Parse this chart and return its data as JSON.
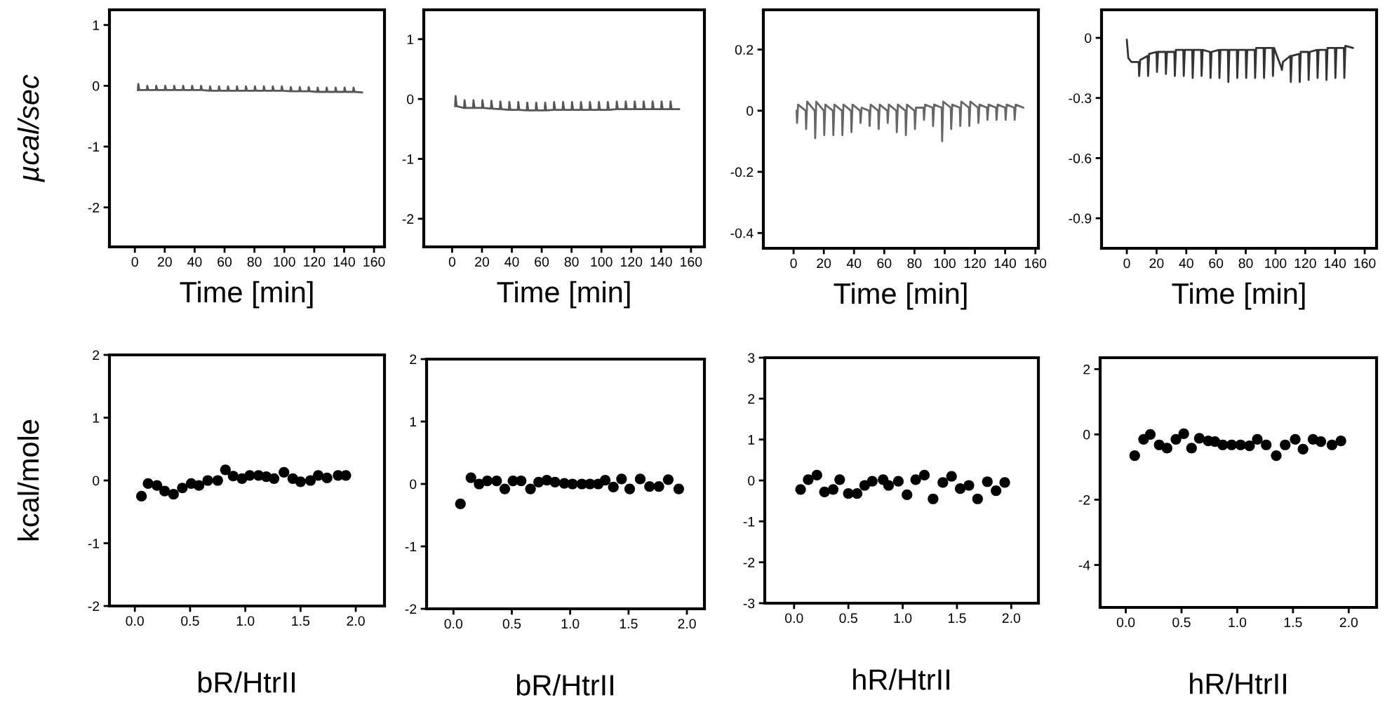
{
  "chart_data": [
    {
      "type": "line",
      "ylabel": "µcal/sec",
      "xlabel": "Time [min]",
      "xlim": [
        -17,
        167
      ],
      "ylim": [
        -2.65,
        1.25
      ],
      "xticks": [
        0,
        20,
        40,
        60,
        80,
        100,
        120,
        140,
        160
      ],
      "yticks": [
        -2,
        -1,
        0,
        1
      ],
      "line_style": "solid",
      "series": [
        {
          "color": "#555555",
          "x": [
            2,
            2.3,
            3,
            8,
            8.3,
            9,
            14,
            14.3,
            15,
            20,
            20.3,
            21,
            26,
            26.3,
            27,
            32,
            32.3,
            33,
            38,
            38.3,
            39,
            44,
            44.3,
            45,
            50,
            50.3,
            51,
            56,
            56.3,
            57,
            62,
            62.3,
            63,
            68,
            68.3,
            69,
            74,
            74.3,
            75,
            80,
            80.3,
            81,
            86,
            86.3,
            87,
            92,
            92.3,
            93,
            98,
            98.3,
            99,
            104,
            104.3,
            105,
            110,
            110.3,
            111,
            116,
            116.3,
            117,
            122,
            122.3,
            123,
            128,
            128.3,
            129,
            134,
            134.3,
            135,
            140,
            140.3,
            141,
            146,
            146.3,
            147,
            152
          ],
          "values": [
            -0.07,
            0.03,
            -0.07,
            -0.07,
            0.0,
            -0.07,
            -0.07,
            0.0,
            -0.07,
            -0.07,
            0.0,
            -0.07,
            -0.07,
            0.0,
            -0.07,
            -0.07,
            0.0,
            -0.07,
            -0.07,
            0.0,
            -0.07,
            -0.07,
            0.0,
            -0.07,
            -0.08,
            -0.01,
            -0.08,
            -0.08,
            -0.01,
            -0.08,
            -0.08,
            -0.01,
            -0.08,
            -0.08,
            -0.01,
            -0.08,
            -0.08,
            -0.01,
            -0.08,
            -0.08,
            -0.01,
            -0.08,
            -0.08,
            -0.01,
            -0.08,
            -0.08,
            -0.01,
            -0.08,
            -0.08,
            -0.01,
            -0.08,
            -0.09,
            -0.02,
            -0.09,
            -0.09,
            -0.02,
            -0.09,
            -0.09,
            -0.02,
            -0.09,
            -0.1,
            -0.03,
            -0.1,
            -0.1,
            -0.03,
            -0.1,
            -0.1,
            -0.03,
            -0.1,
            -0.1,
            -0.03,
            -0.1,
            -0.1,
            -0.03,
            -0.1,
            -0.11
          ]
        }
      ]
    },
    {
      "type": "line",
      "xlabel": "Time [min]",
      "xlim": [
        -19,
        169
      ],
      "ylim": [
        -2.47,
        1.49
      ],
      "xticks": [
        0,
        20,
        40,
        60,
        80,
        100,
        120,
        140,
        160
      ],
      "yticks": [
        -2,
        -1,
        0,
        1
      ],
      "line_style": "solid",
      "series": [
        {
          "color": "#555555",
          "x": [
            2,
            2.3,
            3,
            8,
            8.3,
            9,
            14,
            14.3,
            15,
            20,
            20.3,
            21,
            26,
            26.3,
            27,
            32,
            32.3,
            33,
            38,
            38.3,
            39,
            44,
            44.3,
            45,
            50,
            50.3,
            51,
            56,
            56.3,
            57,
            62,
            62.3,
            63,
            68,
            68.3,
            69,
            74,
            74.3,
            75,
            80,
            80.3,
            81,
            86,
            86.3,
            87,
            92,
            92.3,
            93,
            98,
            98.3,
            99,
            104,
            104.3,
            105,
            110,
            110.3,
            111,
            116,
            116.3,
            117,
            122,
            122.3,
            123,
            128,
            128.3,
            129,
            134,
            134.3,
            135,
            140,
            140.3,
            141,
            146,
            146.3,
            147,
            152
          ],
          "values": [
            -0.12,
            0.05,
            -0.12,
            -0.15,
            -0.02,
            -0.15,
            -0.15,
            -0.02,
            -0.15,
            -0.15,
            -0.02,
            -0.15,
            -0.16,
            -0.03,
            -0.16,
            -0.17,
            -0.04,
            -0.17,
            -0.18,
            -0.05,
            -0.18,
            -0.18,
            -0.05,
            -0.18,
            -0.19,
            -0.06,
            -0.19,
            -0.19,
            -0.06,
            -0.19,
            -0.19,
            -0.06,
            -0.19,
            -0.18,
            -0.05,
            -0.18,
            -0.18,
            -0.05,
            -0.18,
            -0.18,
            -0.05,
            -0.18,
            -0.18,
            -0.05,
            -0.18,
            -0.18,
            -0.05,
            -0.18,
            -0.18,
            -0.05,
            -0.18,
            -0.18,
            -0.05,
            -0.18,
            -0.17,
            -0.04,
            -0.17,
            -0.17,
            -0.04,
            -0.17,
            -0.17,
            -0.04,
            -0.17,
            -0.17,
            -0.04,
            -0.17,
            -0.17,
            -0.04,
            -0.17,
            -0.17,
            -0.04,
            -0.17,
            -0.17,
            -0.04,
            -0.17,
            -0.17
          ]
        }
      ]
    },
    {
      "type": "line",
      "xlabel": "Time [min]",
      "xlim": [
        -20,
        162
      ],
      "ylim": [
        -0.45,
        0.33
      ],
      "xticks": [
        0,
        20,
        40,
        60,
        80,
        100,
        120,
        140,
        160
      ],
      "yticks": [
        -0.4,
        -0.2,
        0,
        0.2
      ],
      "line_style": "solid",
      "series": [
        {
          "color": "#666666",
          "x": [
            2,
            2.3,
            3,
            8,
            8.3,
            9,
            14,
            14.3,
            15,
            20,
            20.3,
            21,
            26,
            26.3,
            27,
            32,
            32.3,
            33,
            38,
            38.3,
            39,
            44,
            44.3,
            45,
            50,
            50.3,
            51,
            56,
            56.3,
            57,
            62,
            62.3,
            63,
            68,
            68.3,
            69,
            74,
            74.3,
            75,
            80,
            80.3,
            81,
            86,
            86.3,
            87,
            92,
            92.3,
            93,
            98,
            98.3,
            99,
            104,
            104.3,
            105,
            110,
            110.3,
            111,
            116,
            116.3,
            117,
            122,
            122.3,
            123,
            128,
            128.3,
            129,
            134,
            134.3,
            135,
            140,
            140.3,
            141,
            146,
            146.3,
            147,
            152
          ],
          "values": [
            0.0,
            -0.04,
            0.02,
            0.0,
            -0.06,
            0.03,
            0.0,
            -0.09,
            0.03,
            0.0,
            -0.08,
            0.02,
            0.0,
            -0.08,
            0.02,
            0.0,
            -0.08,
            0.02,
            0.0,
            -0.07,
            0.02,
            0.0,
            -0.04,
            0.01,
            0.0,
            -0.05,
            0.02,
            0.0,
            -0.06,
            0.02,
            0.0,
            -0.04,
            0.02,
            0.0,
            -0.07,
            0.02,
            0.0,
            -0.08,
            0.02,
            0.0,
            -0.06,
            0.01,
            0.01,
            -0.03,
            0.02,
            0.01,
            -0.05,
            0.02,
            0.01,
            -0.1,
            0.03,
            0.01,
            -0.06,
            0.02,
            0.01,
            -0.05,
            0.03,
            0.01,
            -0.05,
            0.03,
            0.01,
            -0.04,
            0.02,
            0.01,
            -0.03,
            0.02,
            0.01,
            -0.03,
            0.02,
            0.01,
            -0.03,
            0.02,
            0.01,
            -0.03,
            0.02,
            0.01
          ]
        }
      ]
    },
    {
      "type": "line",
      "xlabel": "Time [min]",
      "xlim": [
        -17,
        168
      ],
      "ylim": [
        -1.05,
        0.14
      ],
      "xticks": [
        0,
        20,
        40,
        60,
        80,
        100,
        120,
        140,
        160
      ],
      "yticks": [
        -0.9,
        -0.6,
        -0.3,
        0
      ],
      "line_style": "solid",
      "series": [
        {
          "color": "#333333",
          "x": [
            0,
            1,
            3,
            8,
            8.3,
            9,
            14,
            14.3,
            15,
            20,
            20.3,
            21,
            26,
            26.3,
            27,
            32,
            32.3,
            33,
            38,
            38.3,
            39,
            44,
            44.3,
            45,
            50,
            50.3,
            51,
            56,
            56.3,
            57,
            62,
            62.3,
            63,
            68,
            68.3,
            69,
            74,
            74.3,
            75,
            80,
            80.3,
            81,
            86,
            86.3,
            87,
            92,
            92.3,
            93,
            98,
            98.3,
            99,
            104,
            104.3,
            105,
            110,
            110.3,
            111,
            116,
            116.3,
            117,
            122,
            122.3,
            123,
            128,
            128.3,
            129,
            134,
            134.3,
            135,
            140,
            140.3,
            141,
            146,
            146.3,
            147,
            152
          ],
          "values": [
            -0.01,
            -0.1,
            -0.12,
            -0.12,
            -0.19,
            -0.11,
            -0.09,
            -0.19,
            -0.08,
            -0.07,
            -0.17,
            -0.07,
            -0.07,
            -0.18,
            -0.07,
            -0.07,
            -0.19,
            -0.06,
            -0.06,
            -0.19,
            -0.06,
            -0.06,
            -0.2,
            -0.06,
            -0.06,
            -0.19,
            -0.06,
            -0.07,
            -0.2,
            -0.07,
            -0.06,
            -0.2,
            -0.06,
            -0.06,
            -0.22,
            -0.06,
            -0.06,
            -0.2,
            -0.06,
            -0.06,
            -0.2,
            -0.06,
            -0.06,
            -0.2,
            -0.05,
            -0.05,
            -0.2,
            -0.05,
            -0.05,
            -0.19,
            -0.05,
            -0.15,
            -0.16,
            -0.12,
            -0.09,
            -0.22,
            -0.09,
            -0.08,
            -0.22,
            -0.07,
            -0.07,
            -0.21,
            -0.07,
            -0.06,
            -0.2,
            -0.06,
            -0.06,
            -0.21,
            -0.05,
            -0.05,
            -0.2,
            -0.05,
            -0.05,
            -0.2,
            -0.04,
            -0.05
          ]
        }
      ]
    },
    {
      "type": "scatter",
      "ylabel": "kcal/mole",
      "xlabel": "bR/HtrII",
      "xlim": [
        -0.23,
        2.26
      ],
      "ylim": [
        -2,
        2
      ],
      "xticks": [
        {
          "value": 0,
          "label": "0.0"
        },
        0.5,
        {
          "value": 1,
          "label": "1.0"
        },
        1.5,
        {
          "value": 2,
          "label": "2.0"
        }
      ],
      "yticks": [
        -2,
        -1,
        0,
        1,
        2
      ],
      "marker": "circle",
      "series": [
        {
          "color": "#000000",
          "x": [
            0.06,
            0.12,
            0.2,
            0.27,
            0.35,
            0.43,
            0.51,
            0.58,
            0.66,
            0.75,
            0.82,
            0.89,
            0.97,
            1.04,
            1.12,
            1.19,
            1.26,
            1.35,
            1.43,
            1.5,
            1.59,
            1.66,
            1.74,
            1.84,
            1.91
          ],
          "values": [
            -0.25,
            -0.05,
            -0.08,
            -0.17,
            -0.22,
            -0.12,
            -0.05,
            -0.08,
            0.0,
            0.0,
            0.17,
            0.07,
            0.03,
            0.08,
            0.08,
            0.06,
            0.03,
            0.13,
            0.03,
            -0.02,
            0.0,
            0.08,
            0.04,
            0.08,
            0.08
          ]
        }
      ]
    },
    {
      "type": "scatter",
      "xlabel": "bR/HtrII",
      "xlim": [
        -0.23,
        2.15
      ],
      "ylim": [
        -2,
        2
      ],
      "xticks": [
        {
          "value": 0,
          "label": "0.0"
        },
        0.5,
        {
          "value": 1,
          "label": "1.0"
        },
        1.5,
        {
          "value": 2,
          "label": "2.0"
        }
      ],
      "yticks": [
        -2,
        -1,
        0,
        1,
        2
      ],
      "marker": "circle",
      "series": [
        {
          "color": "#000000",
          "x": [
            0.06,
            0.15,
            0.22,
            0.29,
            0.37,
            0.44,
            0.51,
            0.58,
            0.66,
            0.73,
            0.8,
            0.87,
            0.95,
            1.02,
            1.1,
            1.17,
            1.24,
            1.3,
            1.37,
            1.44,
            1.51,
            1.6,
            1.68,
            1.76,
            1.84,
            1.93
          ],
          "values": [
            -0.32,
            0.1,
            0.0,
            0.05,
            0.05,
            -0.08,
            0.05,
            0.05,
            -0.08,
            0.03,
            0.06,
            0.03,
            0.01,
            0.0,
            0.0,
            0.0,
            0.0,
            0.06,
            -0.05,
            0.08,
            -0.08,
            0.08,
            -0.04,
            -0.04,
            0.07,
            -0.08
          ]
        }
      ]
    },
    {
      "type": "scatter",
      "xlabel": "hR/HtrII",
      "xlim": [
        -0.27,
        2.25
      ],
      "ylim": [
        -3,
        3
      ],
      "xticks": [
        {
          "value": 0,
          "label": "0.0"
        },
        0.5,
        {
          "value": 1,
          "label": "1.0"
        },
        1.5,
        {
          "value": 2,
          "label": "2.0"
        }
      ],
      "yticks": [
        -3,
        -2,
        -1,
        0,
        1,
        2,
        3
      ],
      "marker": "circle",
      "series": [
        {
          "color": "#000000",
          "x": [
            0.06,
            0.13,
            0.21,
            0.28,
            0.36,
            0.42,
            0.5,
            0.58,
            0.65,
            0.72,
            0.82,
            0.87,
            0.96,
            1.04,
            1.12,
            1.2,
            1.28,
            1.37,
            1.45,
            1.53,
            1.61,
            1.69,
            1.78,
            1.86,
            1.94
          ],
          "values": [
            -0.22,
            0.02,
            0.13,
            -0.28,
            -0.22,
            0.02,
            -0.32,
            -0.32,
            -0.12,
            -0.02,
            0.02,
            -0.12,
            -0.02,
            -0.35,
            0.02,
            0.13,
            -0.45,
            -0.05,
            0.1,
            -0.2,
            -0.12,
            -0.45,
            -0.03,
            -0.25,
            -0.05
          ]
        }
      ]
    },
    {
      "type": "scatter",
      "xlabel": "hR/HtrII",
      "xlim": [
        -0.23,
        2.25
      ],
      "ylim": [
        -5.3,
        2.35
      ],
      "xticks": [
        {
          "value": 0,
          "label": "0.0"
        },
        0.5,
        {
          "value": 1,
          "label": "1.0"
        },
        1.5,
        {
          "value": 2,
          "label": "2.0"
        }
      ],
      "yticks": [
        -4,
        -2,
        0,
        2
      ],
      "marker": "circle",
      "series": [
        {
          "color": "#000000",
          "x": [
            0.08,
            0.16,
            0.22,
            0.3,
            0.37,
            0.45,
            0.52,
            0.59,
            0.66,
            0.74,
            0.8,
            0.87,
            0.95,
            1.03,
            1.11,
            1.18,
            1.26,
            1.35,
            1.43,
            1.52,
            1.59,
            1.68,
            1.75,
            1.85,
            1.93
          ],
          "values": [
            -0.65,
            -0.15,
            0.0,
            -0.32,
            -0.42,
            -0.15,
            0.02,
            -0.42,
            -0.12,
            -0.2,
            -0.22,
            -0.32,
            -0.32,
            -0.32,
            -0.35,
            -0.15,
            -0.32,
            -0.65,
            -0.32,
            -0.15,
            -0.45,
            -0.15,
            -0.22,
            -0.32,
            -0.2
          ]
        }
      ]
    }
  ]
}
